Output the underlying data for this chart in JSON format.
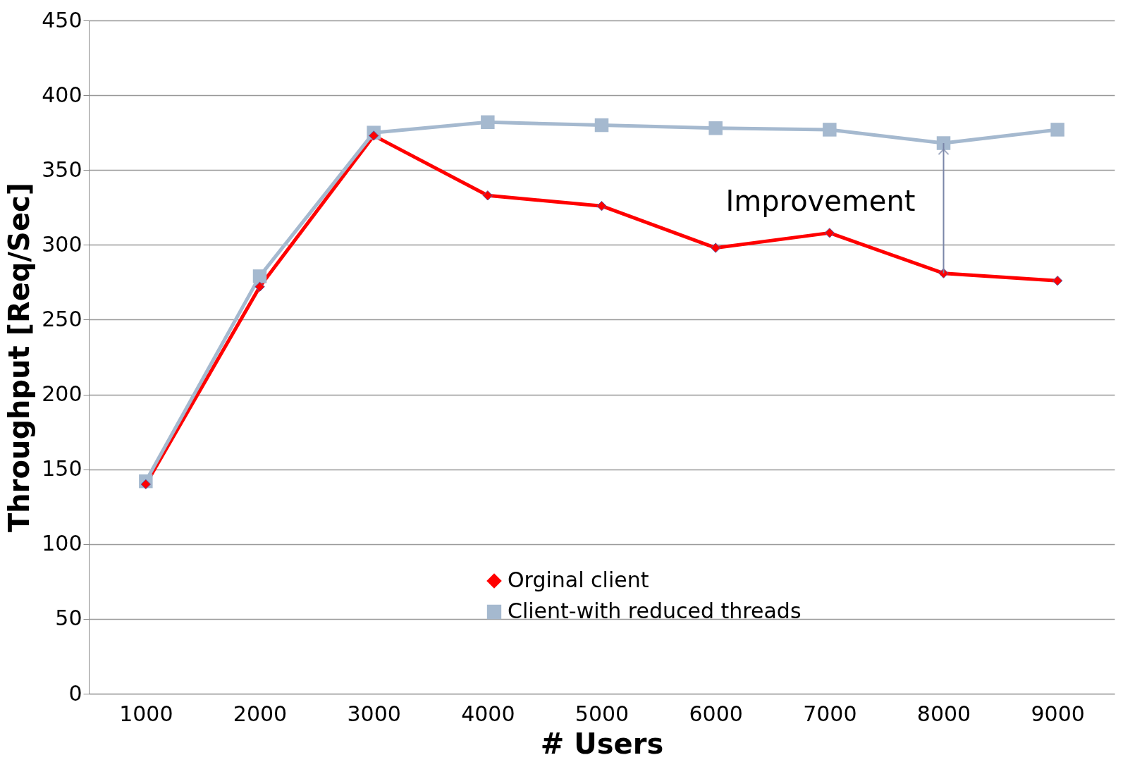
{
  "chart_data": {
    "type": "line",
    "xlabel": "# Users",
    "ylabel": "Throughput [Req/Sec]",
    "categories": [
      "1000",
      "2000",
      "3000",
      "4000",
      "5000",
      "6000",
      "7000",
      "8000",
      "9000"
    ],
    "series": [
      {
        "name": "Orginal client",
        "color": "#ff0000",
        "marker": "diamond",
        "values": [
          140,
          272,
          373,
          333,
          326,
          298,
          308,
          281,
          276
        ]
      },
      {
        "name": "Client-with reduced threads",
        "color": "#a5b9cf",
        "marker": "square",
        "values": [
          142,
          279,
          375,
          382,
          380,
          378,
          377,
          368,
          377
        ]
      }
    ],
    "ylim": [
      0,
      450
    ],
    "yticks": [
      0,
      50,
      100,
      150,
      200,
      250,
      300,
      350,
      400,
      450
    ],
    "grid": "y",
    "legend": "bottom",
    "annotations": [
      {
        "text": "Improvement",
        "x": "8000",
        "y": 368
      }
    ]
  }
}
